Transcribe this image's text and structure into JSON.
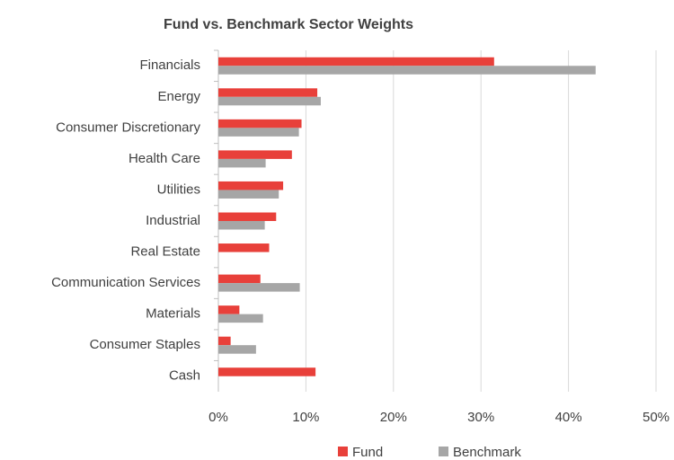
{
  "chart_data": {
    "type": "hbar",
    "title": "Fund vs. Benchmark Sector Weights",
    "categories": [
      "Financials",
      "Energy",
      "Consumer Discretionary",
      "Health Care",
      "Utilities",
      "Industrial",
      "Real Estate",
      "Communication Services",
      "Materials",
      "Consumer Staples",
      "Cash"
    ],
    "series": [
      {
        "name": "Fund",
        "color": "#e8403a",
        "values": [
          31.5,
          11.3,
          9.5,
          8.4,
          7.4,
          6.6,
          5.8,
          4.8,
          2.4,
          1.4,
          11.1
        ]
      },
      {
        "name": "Benchmark",
        "color": "#a6a6a6",
        "values": [
          43.1,
          11.7,
          9.2,
          5.4,
          6.9,
          5.3,
          0,
          9.3,
          5.1,
          4.3,
          0
        ]
      }
    ],
    "xlim": [
      0,
      50
    ],
    "xticks": [
      {
        "value": 0,
        "label": "0%"
      },
      {
        "value": 10,
        "label": "10%"
      },
      {
        "value": 20,
        "label": "20%"
      },
      {
        "value": 30,
        "label": "30%"
      },
      {
        "value": 40,
        "label": "40%"
      },
      {
        "value": 50,
        "label": "50%"
      }
    ],
    "grid": true,
    "legend": "bottom"
  }
}
